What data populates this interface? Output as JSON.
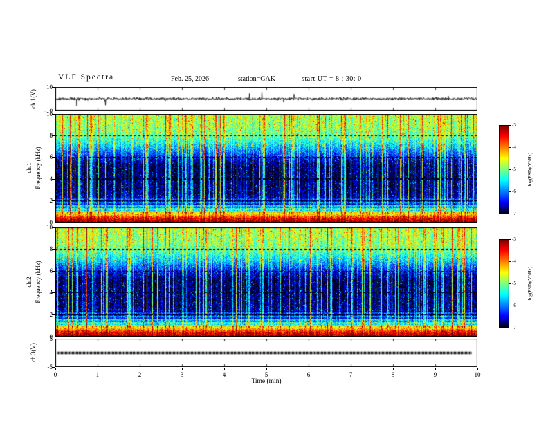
{
  "header": {
    "title": "VLF Spectra",
    "date": "Feb. 25, 2026",
    "station": "station=GAK",
    "start_ut": "start UT = 8 : 30: 0"
  },
  "x_axis": {
    "label": "Time  (min)",
    "lim": [
      0,
      10
    ],
    "ticks": [
      0,
      1,
      2,
      3,
      4,
      5,
      6,
      7,
      8,
      9,
      10
    ]
  },
  "colorbar": {
    "label": "log(PSD)(V²/Hz)",
    "lim": [
      -7,
      -3
    ],
    "ticks": [
      -3,
      -4,
      -5,
      -6,
      -7
    ]
  },
  "chart_data": [
    {
      "type": "line",
      "name": "ch1-waveform",
      "ylabel": "ch.1(V)",
      "ylim": [
        -10,
        10
      ],
      "yticks": [
        10,
        -10
      ],
      "description": "Broadband VLF receiver output: zero-mean noise about 1 V rms with impulsive sferic spikes reaching roughly plus/minus 6 V over 0-10 min",
      "synthesis": {
        "seed": 42,
        "rms": 1.1,
        "spike_probability": 0.012,
        "spike_amplitude": [
          2.5,
          6
        ]
      }
    },
    {
      "type": "heatmap",
      "name": "ch1-spectrogram",
      "ylabel_channel": "ch.1",
      "ylabel": "Frequency (kHz)",
      "ylim": [
        0,
        10
      ],
      "yticks": [
        0,
        2,
        4,
        6,
        8,
        10
      ],
      "zlim": [
        -7,
        -3
      ],
      "colormap": "jet",
      "description": "VLF spectrogram 0-10 kHz over 0-10 min: intense red/orange band below 1 kHz (PSD near -3.5), dark blue/black minimum 2-5 kHz (near -7), green hiss band 7-10 kHz (near -5), dense vertical sferic streaks, dotted dark gridlines at 2/4/6/8 kHz",
      "synthesis": {
        "seed": 1234,
        "profile": [
          [
            0,
            -3.2
          ],
          [
            0.25,
            -3.4
          ],
          [
            0.5,
            -3.8
          ],
          [
            0.7,
            -4.3
          ],
          [
            0.9,
            -4.8
          ],
          [
            1.1,
            -5.3
          ],
          [
            1.5,
            -6.0
          ],
          [
            2.0,
            -6.5
          ],
          [
            2.6,
            -6.85
          ],
          [
            5.2,
            -6.95
          ],
          [
            6.0,
            -6.5
          ],
          [
            7.0,
            -5.7
          ],
          [
            8.0,
            -5.1
          ],
          [
            9.0,
            -4.9
          ],
          [
            10,
            -4.8
          ]
        ],
        "streak_probability": 0.3,
        "streak_max": 2.4,
        "gridline_freqs": [
          2,
          4,
          6,
          8
        ]
      }
    },
    {
      "type": "heatmap",
      "name": "ch2-spectrogram",
      "ylabel_channel": "ch.2",
      "ylabel": "Frequency (kHz)",
      "ylim": [
        0,
        10
      ],
      "yticks": [
        0,
        2,
        4,
        6,
        8,
        10
      ],
      "zlim": [
        -7,
        -3
      ],
      "colormap": "jet",
      "description": "Same structure as ch.1 spectrogram: red band below 1 kHz, dark 2-5 kHz minimum, green band above 7 kHz, vertical sferic streaks",
      "synthesis": {
        "seed": 987,
        "profile": [
          [
            0,
            -3.2
          ],
          [
            0.25,
            -3.4
          ],
          [
            0.5,
            -3.8
          ],
          [
            0.7,
            -4.3
          ],
          [
            0.9,
            -4.8
          ],
          [
            1.1,
            -5.3
          ],
          [
            1.5,
            -6.0
          ],
          [
            2.0,
            -6.5
          ],
          [
            2.6,
            -6.85
          ],
          [
            5.2,
            -6.95
          ],
          [
            6.0,
            -6.5
          ],
          [
            7.0,
            -5.7
          ],
          [
            8.0,
            -5.1
          ],
          [
            9.0,
            -4.9
          ],
          [
            10,
            -4.8
          ]
        ],
        "streak_probability": 0.3,
        "streak_max": 2.4,
        "gridline_freqs": [
          2,
          4,
          6,
          8
        ]
      }
    },
    {
      "type": "line",
      "name": "ch3-waveform",
      "ylabel": "ch.3(V)",
      "ylim": [
        -5,
        5
      ],
      "yticks": [
        5,
        -5
      ],
      "value": 0,
      "description": "Constant 0 V thick trace across the full record"
    }
  ]
}
